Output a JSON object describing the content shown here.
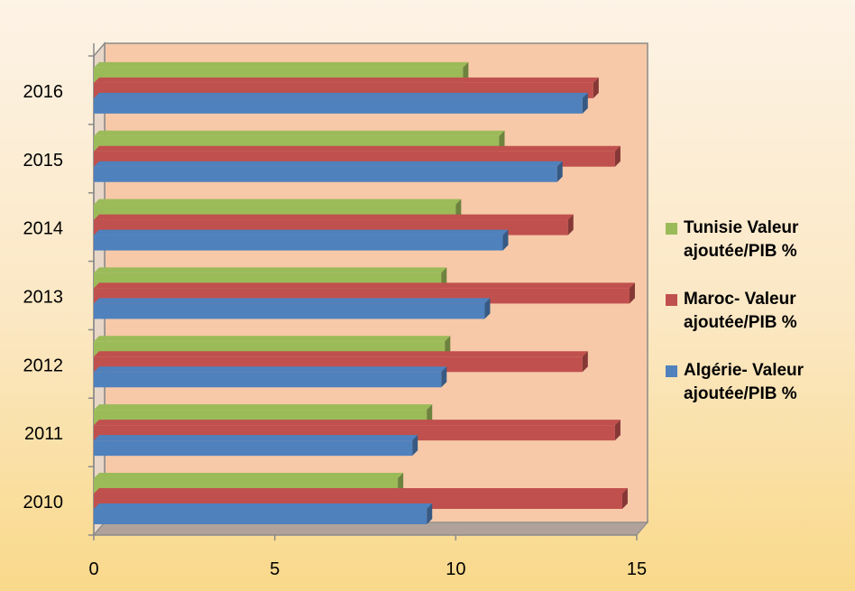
{
  "chart_data": {
    "type": "bar",
    "orientation": "horizontal",
    "categories": [
      "2010",
      "2011",
      "2012",
      "2013",
      "2014",
      "2015",
      "2016"
    ],
    "series": [
      {
        "name": "Algérie- Valeur ajoutée/PIB %",
        "color": "#4f81bd",
        "values": [
          9.2,
          8.8,
          9.6,
          10.8,
          11.3,
          12.8,
          13.5
        ]
      },
      {
        "name": "Maroc- Valeur ajoutée/PIB %",
        "color": "#c0504d",
        "values": [
          14.6,
          14.4,
          13.5,
          14.8,
          13.1,
          14.4,
          13.8
        ]
      },
      {
        "name": "Tunisie Valeur ajoutée/PIB %",
        "color": "#9bbb59",
        "values": [
          8.4,
          9.2,
          9.7,
          9.6,
          10.0,
          11.2,
          10.2
        ]
      }
    ],
    "xlim": [
      0,
      15
    ],
    "x_ticks": [
      "0",
      "5",
      "10",
      "15"
    ],
    "title": "",
    "xlabel": "",
    "ylabel": "",
    "grid": false,
    "legend_position": "right",
    "plot_background": "#f7c9a8"
  },
  "legend": [
    {
      "line1": "Tunisie Valeur",
      "line2": "ajoutée/PIB %",
      "color": "#9bbb59"
    },
    {
      "line1": "Maroc- Valeur",
      "line2": "ajoutée/PIB %",
      "color": "#c0504d"
    },
    {
      "line1": "Algérie- Valeur",
      "line2": "ajoutée/PIB %",
      "color": "#4f81bd"
    }
  ]
}
